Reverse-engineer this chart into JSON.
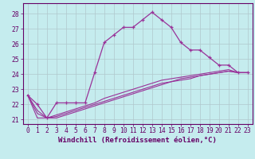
{
  "xlabel": "Windchill (Refroidissement éolien,°C)",
  "xlim": [
    -0.5,
    23.5
  ],
  "ylim": [
    20.7,
    28.7
  ],
  "yticks": [
    21,
    22,
    23,
    24,
    25,
    26,
    27,
    28
  ],
  "xticks": [
    0,
    1,
    2,
    3,
    4,
    5,
    6,
    7,
    8,
    9,
    10,
    11,
    12,
    13,
    14,
    15,
    16,
    17,
    18,
    19,
    20,
    21,
    22,
    23
  ],
  "background_color": "#c5ecee",
  "line_color": "#993399",
  "grid_color": "#b0c8cc",
  "series": {
    "curve1": {
      "x": [
        0,
        1,
        2,
        3,
        4,
        5,
        6,
        7,
        8,
        9,
        10,
        11,
        12,
        13,
        14,
        15,
        16,
        17,
        18,
        19,
        20,
        21,
        22,
        23
      ],
      "y": [
        22.6,
        22.0,
        21.1,
        22.1,
        22.1,
        22.1,
        22.1,
        24.1,
        26.1,
        26.6,
        27.1,
        27.1,
        27.6,
        28.1,
        27.6,
        27.1,
        26.1,
        25.6,
        25.6,
        25.1,
        24.6,
        24.6,
        24.1,
        24.1
      ],
      "has_markers": true
    },
    "curve2": {
      "x": [
        0,
        1,
        2,
        3,
        4,
        5,
        6,
        7,
        8,
        9,
        10,
        11,
        12,
        13,
        14,
        15,
        16,
        17,
        18,
        19,
        20,
        21,
        22,
        23
      ],
      "y": [
        22.6,
        21.6,
        21.1,
        21.3,
        21.5,
        21.7,
        21.9,
        22.1,
        22.4,
        22.6,
        22.8,
        23.0,
        23.2,
        23.4,
        23.6,
        23.7,
        23.8,
        23.9,
        24.0,
        24.1,
        24.2,
        24.3,
        24.1,
        24.1
      ],
      "has_markers": false
    },
    "curve3": {
      "x": [
        0,
        1,
        2,
        3,
        4,
        5,
        6,
        7,
        8,
        9,
        10,
        11,
        12,
        13,
        14,
        15,
        16,
        17,
        18,
        19,
        20,
        21,
        22,
        23
      ],
      "y": [
        22.6,
        21.4,
        21.1,
        21.2,
        21.4,
        21.6,
        21.8,
        22.0,
        22.2,
        22.4,
        22.6,
        22.8,
        23.0,
        23.2,
        23.4,
        23.5,
        23.7,
        23.8,
        23.9,
        24.0,
        24.1,
        24.2,
        24.1,
        24.1
      ],
      "has_markers": false
    },
    "curve4": {
      "x": [
        0,
        1,
        2,
        3,
        4,
        5,
        6,
        7,
        8,
        9,
        10,
        11,
        12,
        13,
        14,
        15,
        16,
        17,
        18,
        19,
        20,
        21,
        22,
        23
      ],
      "y": [
        22.6,
        21.1,
        21.1,
        21.1,
        21.3,
        21.5,
        21.7,
        21.9,
        22.1,
        22.3,
        22.5,
        22.7,
        22.9,
        23.1,
        23.3,
        23.5,
        23.6,
        23.7,
        23.9,
        24.0,
        24.1,
        24.2,
        24.1,
        24.1
      ],
      "has_markers": false
    }
  },
  "font_color": "#660066",
  "font_size_xlabel": 6.5,
  "font_size_tick": 5.8
}
